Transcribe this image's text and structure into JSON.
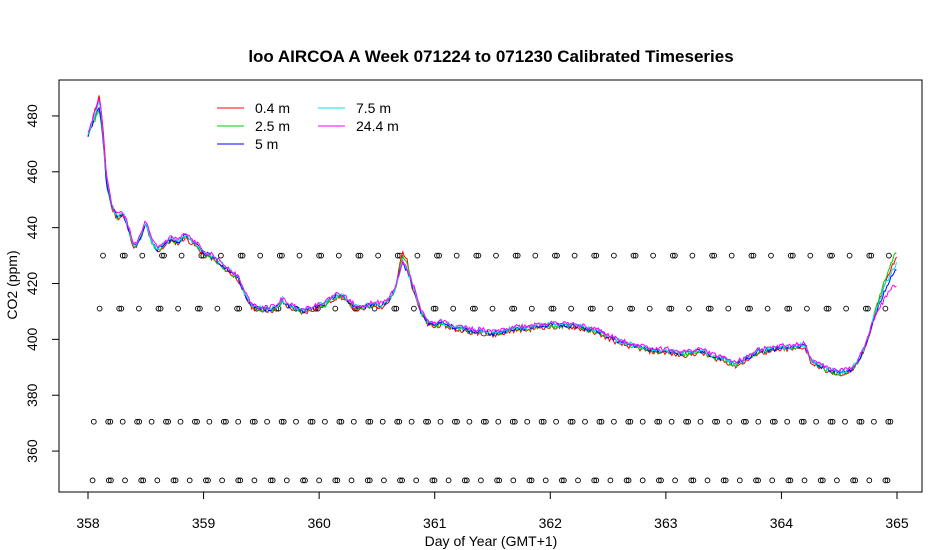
{
  "chart_data": {
    "type": "line",
    "title": "loo AIRCOA A  Week 071224 to 071230  Calibrated Timeseries",
    "xlabel": "Day of Year (GMT+1)",
    "ylabel": "CO2 (ppm)",
    "xlim": [
      358,
      365
    ],
    "ylim": [
      350,
      490
    ],
    "x_ticks": [
      358,
      359,
      360,
      361,
      362,
      363,
      364,
      365
    ],
    "y_ticks": [
      360,
      380,
      400,
      420,
      440,
      460,
      480
    ],
    "grid": false,
    "legend_position": "top-left",
    "series": [
      {
        "name": "0.4 m",
        "color": "#ff0000"
      },
      {
        "name": "2.5 m",
        "color": "#00cd00"
      },
      {
        "name": "5 m",
        "color": "#0000ff"
      },
      {
        "name": "7.5 m",
        "color": "#00e5ee"
      },
      {
        "name": "24.4 m",
        "color": "#ff00ff"
      }
    ],
    "base_curve": [
      [
        358.0,
        473
      ],
      [
        358.06,
        478
      ],
      [
        358.1,
        482
      ],
      [
        358.13,
        470
      ],
      [
        358.16,
        455
      ],
      [
        358.2,
        448
      ],
      [
        358.25,
        444
      ],
      [
        358.3,
        445
      ],
      [
        358.34,
        441
      ],
      [
        358.4,
        433
      ],
      [
        358.46,
        437
      ],
      [
        358.5,
        442
      ],
      [
        358.55,
        435
      ],
      [
        358.6,
        432
      ],
      [
        358.66,
        434
      ],
      [
        358.72,
        436
      ],
      [
        358.78,
        435
      ],
      [
        358.84,
        437
      ],
      [
        358.9,
        435
      ],
      [
        358.96,
        433
      ],
      [
        359.0,
        431
      ],
      [
        359.06,
        430
      ],
      [
        359.12,
        428
      ],
      [
        359.18,
        426
      ],
      [
        359.24,
        424
      ],
      [
        359.3,
        422
      ],
      [
        359.36,
        416
      ],
      [
        359.42,
        412
      ],
      [
        359.48,
        411
      ],
      [
        359.55,
        411
      ],
      [
        359.62,
        411
      ],
      [
        359.68,
        414
      ],
      [
        359.74,
        412
      ],
      [
        359.8,
        411
      ],
      [
        359.86,
        410
      ],
      [
        359.92,
        411
      ],
      [
        360.0,
        412
      ],
      [
        360.06,
        413
      ],
      [
        360.12,
        415
      ],
      [
        360.18,
        416
      ],
      [
        360.24,
        414
      ],
      [
        360.3,
        412
      ],
      [
        360.36,
        411
      ],
      [
        360.42,
        412
      ],
      [
        360.48,
        413
      ],
      [
        360.54,
        412
      ],
      [
        360.6,
        414
      ],
      [
        360.66,
        418
      ],
      [
        360.72,
        426
      ],
      [
        360.76,
        424
      ],
      [
        360.82,
        418
      ],
      [
        360.88,
        410
      ],
      [
        360.94,
        406
      ],
      [
        361.0,
        405
      ],
      [
        361.06,
        406
      ],
      [
        361.12,
        405
      ],
      [
        361.18,
        404
      ],
      [
        361.24,
        404
      ],
      [
        361.3,
        403
      ],
      [
        361.4,
        403
      ],
      [
        361.5,
        402
      ],
      [
        361.6,
        403
      ],
      [
        361.7,
        404
      ],
      [
        361.8,
        404
      ],
      [
        361.9,
        405
      ],
      [
        362.0,
        405
      ],
      [
        362.1,
        405
      ],
      [
        362.2,
        405
      ],
      [
        362.3,
        404
      ],
      [
        362.4,
        403
      ],
      [
        362.5,
        401
      ],
      [
        362.6,
        399
      ],
      [
        362.7,
        398
      ],
      [
        362.8,
        397
      ],
      [
        362.9,
        396
      ],
      [
        363.0,
        396
      ],
      [
        363.1,
        395
      ],
      [
        363.2,
        395
      ],
      [
        363.3,
        396
      ],
      [
        363.4,
        394
      ],
      [
        363.5,
        393
      ],
      [
        363.6,
        391
      ],
      [
        363.7,
        393
      ],
      [
        363.8,
        396
      ],
      [
        363.9,
        396
      ],
      [
        364.0,
        397
      ],
      [
        364.1,
        397
      ],
      [
        364.2,
        398
      ],
      [
        364.26,
        392
      ],
      [
        364.32,
        391
      ],
      [
        364.4,
        389
      ],
      [
        364.5,
        388
      ],
      [
        364.6,
        389
      ],
      [
        364.66,
        392
      ],
      [
        364.72,
        397
      ],
      [
        364.78,
        405
      ],
      [
        364.84,
        412
      ],
      [
        364.9,
        418
      ],
      [
        364.96,
        423
      ],
      [
        365.0,
        425
      ]
    ],
    "marker_rows": [
      {
        "y": 430,
        "start": 358.13,
        "end": 365.0,
        "spacing": 0.17
      },
      {
        "y": 411,
        "start": 358.1,
        "end": 365.0,
        "spacing": 0.17
      },
      {
        "y": 370.5,
        "start": 358.05,
        "end": 365.0,
        "spacing": 0.125
      },
      {
        "y": 349.5,
        "start": 358.04,
        "end": 365.0,
        "spacing": 0.14
      }
    ]
  }
}
